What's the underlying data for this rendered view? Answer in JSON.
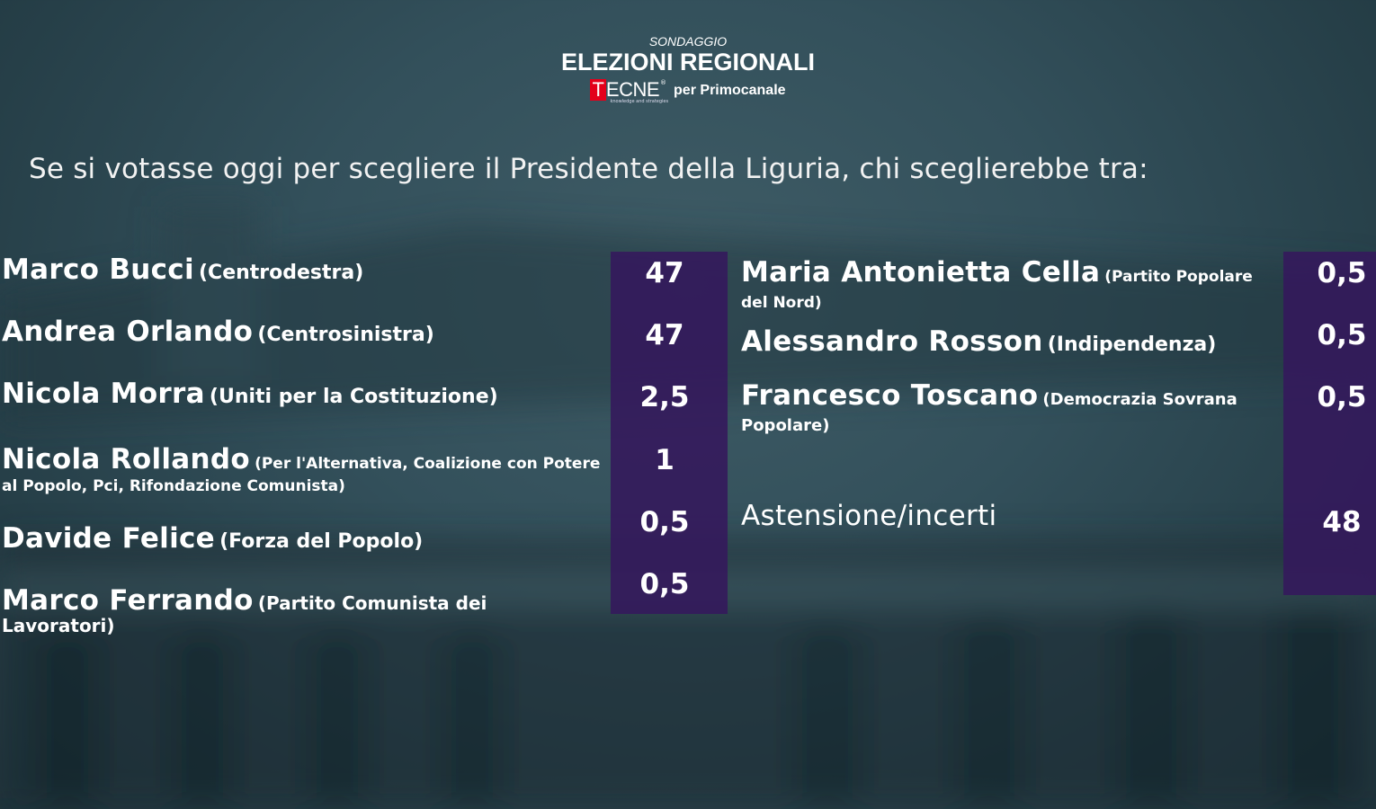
{
  "header": {
    "kicker": "SONDAGGIO",
    "title": "ELEZIONI REGIONALI",
    "logo_initial": "T",
    "logo_rest": "ECNE",
    "logo_mark": "®",
    "logo_tagline": "knowledge and strategies",
    "per": "per",
    "broadcaster": "Primocanale"
  },
  "question": "Se si votasse oggi per scegliere il Presidente della Liguria, chi sceglierebbe tra:",
  "left_candidates": [
    {
      "name": "Marco Bucci",
      "party": "(Centrodestra)",
      "value": "47"
    },
    {
      "name": "Andrea Orlando",
      "party": "(Centrosinistra)",
      "value": "47"
    },
    {
      "name": "Nicola Morra",
      "party": "(Uniti per la Costituzione)",
      "value": "2,5"
    },
    {
      "name": "Nicola Rollando",
      "party": "(Per l'Alternativa, Coalizione con Potere al Popolo, Pci, Rifondazione Comunista)",
      "value": "1"
    },
    {
      "name": "Davide Felice",
      "party": "(Forza del Popolo)",
      "value": "0,5"
    },
    {
      "name": "Marco Ferrando",
      "party": "(Partito Comunista dei Lavoratori)",
      "value": "0,5"
    }
  ],
  "right_candidates": [
    {
      "name": "Maria Antonietta Cella",
      "party": "(Partito Popolare del Nord)",
      "value": "0,5"
    },
    {
      "name": "Alessandro Rosson",
      "party": "(Indipendenza)",
      "value": "0,5"
    },
    {
      "name": "Francesco Toscano",
      "party": "(Democrazia Sovrana Popolare)",
      "value": "0,5"
    },
    {
      "name": "Astensione/incerti",
      "party": "",
      "value": "48"
    }
  ],
  "colors": {
    "value_column": "#34185c",
    "background": "#33505b",
    "logo_red": "#e3001b"
  }
}
